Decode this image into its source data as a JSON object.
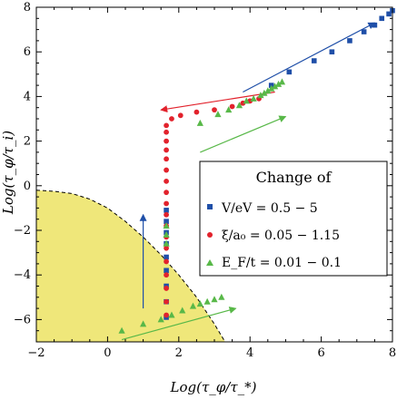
{
  "chart_data": {
    "type": "scatter",
    "xlabel": "Log(τ_φ/τ_*)",
    "ylabel": "Log(τ_φ/τ_i)",
    "xlim": [
      -2,
      8
    ],
    "ylim": [
      -7,
      8
    ],
    "xticks": [
      "−2",
      "0",
      "2",
      "4",
      "6",
      "8"
    ],
    "yticks": [
      "8",
      "6",
      "4",
      "2",
      "0",
      "−2",
      "−4",
      "−6"
    ],
    "legend": {
      "title": "Change of",
      "placement": "right-middle",
      "entries": [
        {
          "series": "blue",
          "text": "V/eV = 0.5 − 5"
        },
        {
          "series": "red",
          "text": "ξ/a₀ = 0.05 − 1.15"
        },
        {
          "series": "green",
          "text": "E_F/t = 0.01 − 0.1"
        }
      ]
    },
    "colors": {
      "blue": "#1f4fa8",
      "red": "#e2222c",
      "green": "#58b848",
      "shade": "#efe77a"
    },
    "series": [
      {
        "id": "blue",
        "marker": "square",
        "points": [
          [
            1.65,
            -5.9
          ],
          [
            1.65,
            -5.2
          ],
          [
            1.65,
            -4.5
          ],
          [
            1.65,
            -3.8
          ],
          [
            1.65,
            -3.2
          ],
          [
            1.65,
            -2.6
          ],
          [
            1.65,
            -2.1
          ],
          [
            1.65,
            -1.6
          ],
          [
            1.65,
            -1.1
          ],
          [
            4.6,
            4.5
          ],
          [
            5.1,
            5.1
          ],
          [
            5.8,
            5.6
          ],
          [
            6.3,
            6.0
          ],
          [
            6.8,
            6.5
          ],
          [
            7.2,
            6.9
          ],
          [
            7.5,
            7.2
          ],
          [
            7.7,
            7.5
          ],
          [
            7.9,
            7.7
          ],
          [
            8.0,
            7.85
          ]
        ]
      },
      {
        "id": "red",
        "marker": "circle",
        "points": [
          [
            1.65,
            -5.8
          ],
          [
            1.65,
            -5.2
          ],
          [
            1.65,
            -4.6
          ],
          [
            1.65,
            -4.0
          ],
          [
            1.65,
            -3.4
          ],
          [
            1.65,
            -2.8
          ],
          [
            1.65,
            -2.3
          ],
          [
            1.65,
            -1.8
          ],
          [
            1.65,
            -1.3
          ],
          [
            1.65,
            -0.8
          ],
          [
            1.65,
            -0.3
          ],
          [
            1.65,
            0.2
          ],
          [
            1.65,
            0.7
          ],
          [
            1.65,
            1.2
          ],
          [
            1.65,
            1.6
          ],
          [
            1.65,
            2.0
          ],
          [
            1.65,
            2.4
          ],
          [
            1.65,
            2.7
          ],
          [
            1.8,
            3.0
          ],
          [
            2.05,
            3.15
          ],
          [
            2.5,
            3.3
          ],
          [
            3.0,
            3.4
          ],
          [
            3.5,
            3.55
          ],
          [
            3.8,
            3.7
          ],
          [
            4.0,
            3.8
          ],
          [
            4.25,
            3.9
          ]
        ]
      },
      {
        "id": "green",
        "marker": "triangle",
        "points": [
          [
            0.4,
            -6.5
          ],
          [
            1.0,
            -6.2
          ],
          [
            1.5,
            -6.0
          ],
          [
            1.8,
            -5.8
          ],
          [
            2.1,
            -5.6
          ],
          [
            2.4,
            -5.4
          ],
          [
            2.6,
            -5.3
          ],
          [
            2.8,
            -5.2
          ],
          [
            3.0,
            -5.1
          ],
          [
            3.2,
            -5.0
          ],
          [
            1.65,
            -1.8
          ],
          [
            1.65,
            -2.2
          ],
          [
            1.65,
            -2.6
          ],
          [
            2.6,
            2.8
          ],
          [
            3.1,
            3.2
          ],
          [
            3.4,
            3.4
          ],
          [
            3.7,
            3.6
          ],
          [
            3.9,
            3.8
          ],
          [
            4.1,
            3.9
          ],
          [
            4.3,
            4.05
          ],
          [
            4.4,
            4.15
          ],
          [
            4.5,
            4.25
          ],
          [
            4.6,
            4.35
          ],
          [
            4.7,
            4.45
          ],
          [
            4.8,
            4.55
          ],
          [
            4.9,
            4.65
          ]
        ]
      }
    ],
    "shaded_region_boundary": [
      [
        -2,
        -0.2
      ],
      [
        -1.5,
        -0.25
      ],
      [
        -1,
        -0.35
      ],
      [
        -0.5,
        -0.6
      ],
      [
        0,
        -1.0
      ],
      [
        0.5,
        -1.6
      ],
      [
        1,
        -2.3
      ],
      [
        1.5,
        -3.1
      ],
      [
        2,
        -4.0
      ],
      [
        2.5,
        -5.0
      ],
      [
        3,
        -6.2
      ],
      [
        3.3,
        -7
      ]
    ],
    "arrows": [
      {
        "color": "blue",
        "from": [
          1.0,
          -5.5
        ],
        "to": [
          1.0,
          -1.3
        ]
      },
      {
        "color": "blue",
        "from": [
          3.8,
          4.2
        ],
        "to": [
          7.5,
          7.3
        ]
      },
      {
        "color": "red",
        "from": [
          4.7,
          4.2
        ],
        "to": [
          1.5,
          3.4
        ]
      },
      {
        "color": "green",
        "from": [
          2.6,
          1.5
        ],
        "to": [
          5.0,
          3.1
        ]
      },
      {
        "color": "green",
        "from": [
          0.4,
          -6.9
        ],
        "to": [
          3.6,
          -5.5
        ]
      }
    ]
  }
}
